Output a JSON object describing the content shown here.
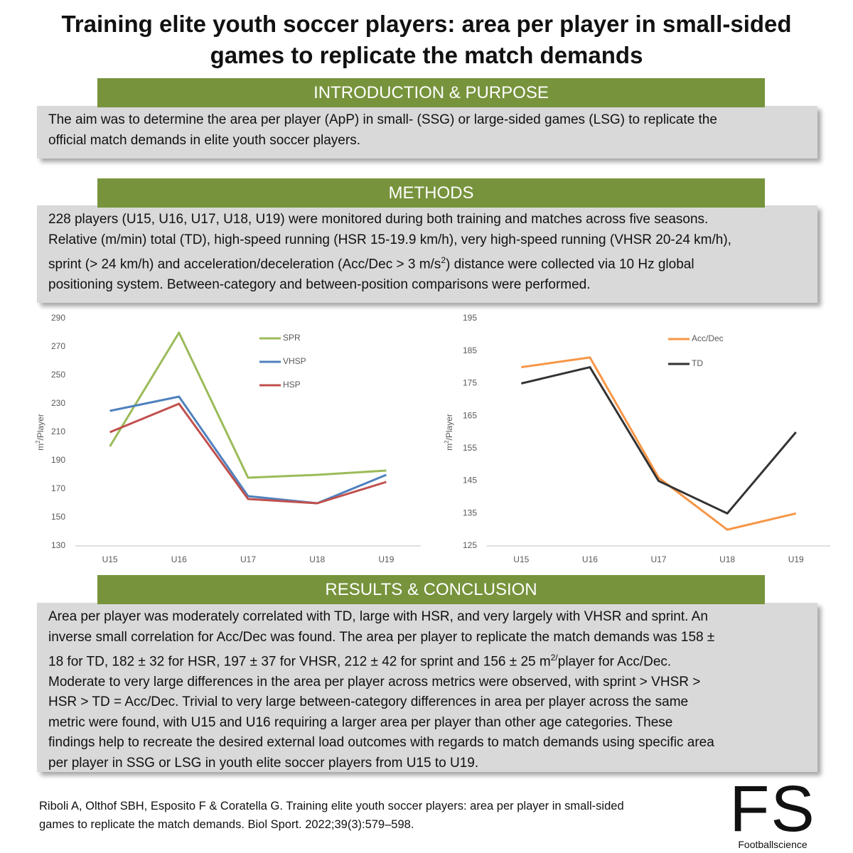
{
  "title": {
    "lines": [
      "Training elite youth soccer players: area per player in small-sided",
      "games to replicate the match demands"
    ]
  },
  "sections": [
    {
      "heading": "INTRODUCTION & PURPOSE",
      "lines": [
        "The aim was to determine the area per player (ApP) in small- (SSG) or large-sided games (LSG) to replicate the",
        "official match demands in elite youth soccer players."
      ]
    },
    {
      "heading": "METHODS",
      "lines": [
        "228 players (U15, U16, U17, U18, U19) were monitored during both training and matches across five seasons.",
        "Relative (m/min) total (TD), high-speed running (HSR 15-19.9 km/h), very high-speed running (VHSR 20-24 km/h),",
        {
          "text": "sprint  (> 24 km/h) and acceleration/deceleration (Acc/Dec > 3 m/s",
          "sup": "2",
          "after": ") distance were collected via 10 Hz global"
        },
        "positioning system. Between-category and between-position comparisons were performed."
      ]
    },
    {
      "heading": "RESULTS & CONCLUSION",
      "lines": [
        "Area per player was moderately correlated with TD, large with HSR, and very largely with VHSR and sprint. An",
        "inverse small correlation for Acc/Dec was found. The area per player to replicate the match demands was 158 ±",
        {
          "text": "18 for TD, 182 ± 32 for HSR, 197 ± 37 for VHSR, 212 ± 42 for sprint and 156 ± 25 m",
          "sup": "2/",
          "after": "player for Acc/Dec."
        },
        "Moderate to very large differences in the area per player across metrics were observed, with sprint > VHSR >",
        "HSR > TD = Acc/Dec. Trivial to very large between-category differences in area per player across the same",
        "metric were found, with U15 and U16 requiring a larger area per player than other age categories. These",
        "findings help to recreate the desired external load outcomes with regards to match demands using specific area",
        "per player in SSG or LSG in youth elite soccer players from U15 to U19."
      ]
    }
  ],
  "chart_data": [
    {
      "type": "line",
      "y_label": {
        "text": "m",
        "sup": "2",
        "after": "/Player"
      },
      "categories": [
        "U15",
        "U16",
        "U17",
        "U18",
        "U19"
      ],
      "series": [
        {
          "name": "SPR",
          "color": "#9bbb59",
          "values": [
            200,
            280,
            178,
            180,
            183
          ]
        },
        {
          "name": "VHSP",
          "color": "#4f81bd",
          "values": [
            225,
            235,
            165,
            160,
            180
          ]
        },
        {
          "name": "HSP",
          "color": "#c0504d",
          "values": [
            210,
            230,
            163,
            160,
            175
          ]
        }
      ],
      "ylim": [
        130,
        290
      ],
      "yticks": [
        130,
        150,
        170,
        190,
        210,
        230,
        250,
        270,
        290
      ],
      "grid": false
    },
    {
      "type": "line",
      "y_label": {
        "text": "m",
        "sup": "2",
        "after": "/Player"
      },
      "categories": [
        "U15",
        "U16",
        "U17",
        "U18",
        "U19"
      ],
      "series": [
        {
          "name": "Acc/Dec",
          "color": "#f79646",
          "values": [
            180,
            183,
            146,
            130,
            135
          ]
        },
        {
          "name": "TD",
          "color": "#333333",
          "values": [
            175,
            180,
            145,
            135,
            160
          ]
        }
      ],
      "ylim": [
        125,
        195
      ],
      "yticks": [
        125,
        135,
        145,
        155,
        165,
        175,
        185,
        195
      ],
      "grid": false
    }
  ],
  "citation": {
    "lines": [
      "Riboli A, Olthof SBH, Esposito F & Coratella G. Training elite youth soccer players: area per player in small-sided",
      "games to replicate the match demands. Biol Sport. 2022;39(3):579–598."
    ]
  },
  "logo": {
    "mark": "FS",
    "name": "Footballscience"
  }
}
